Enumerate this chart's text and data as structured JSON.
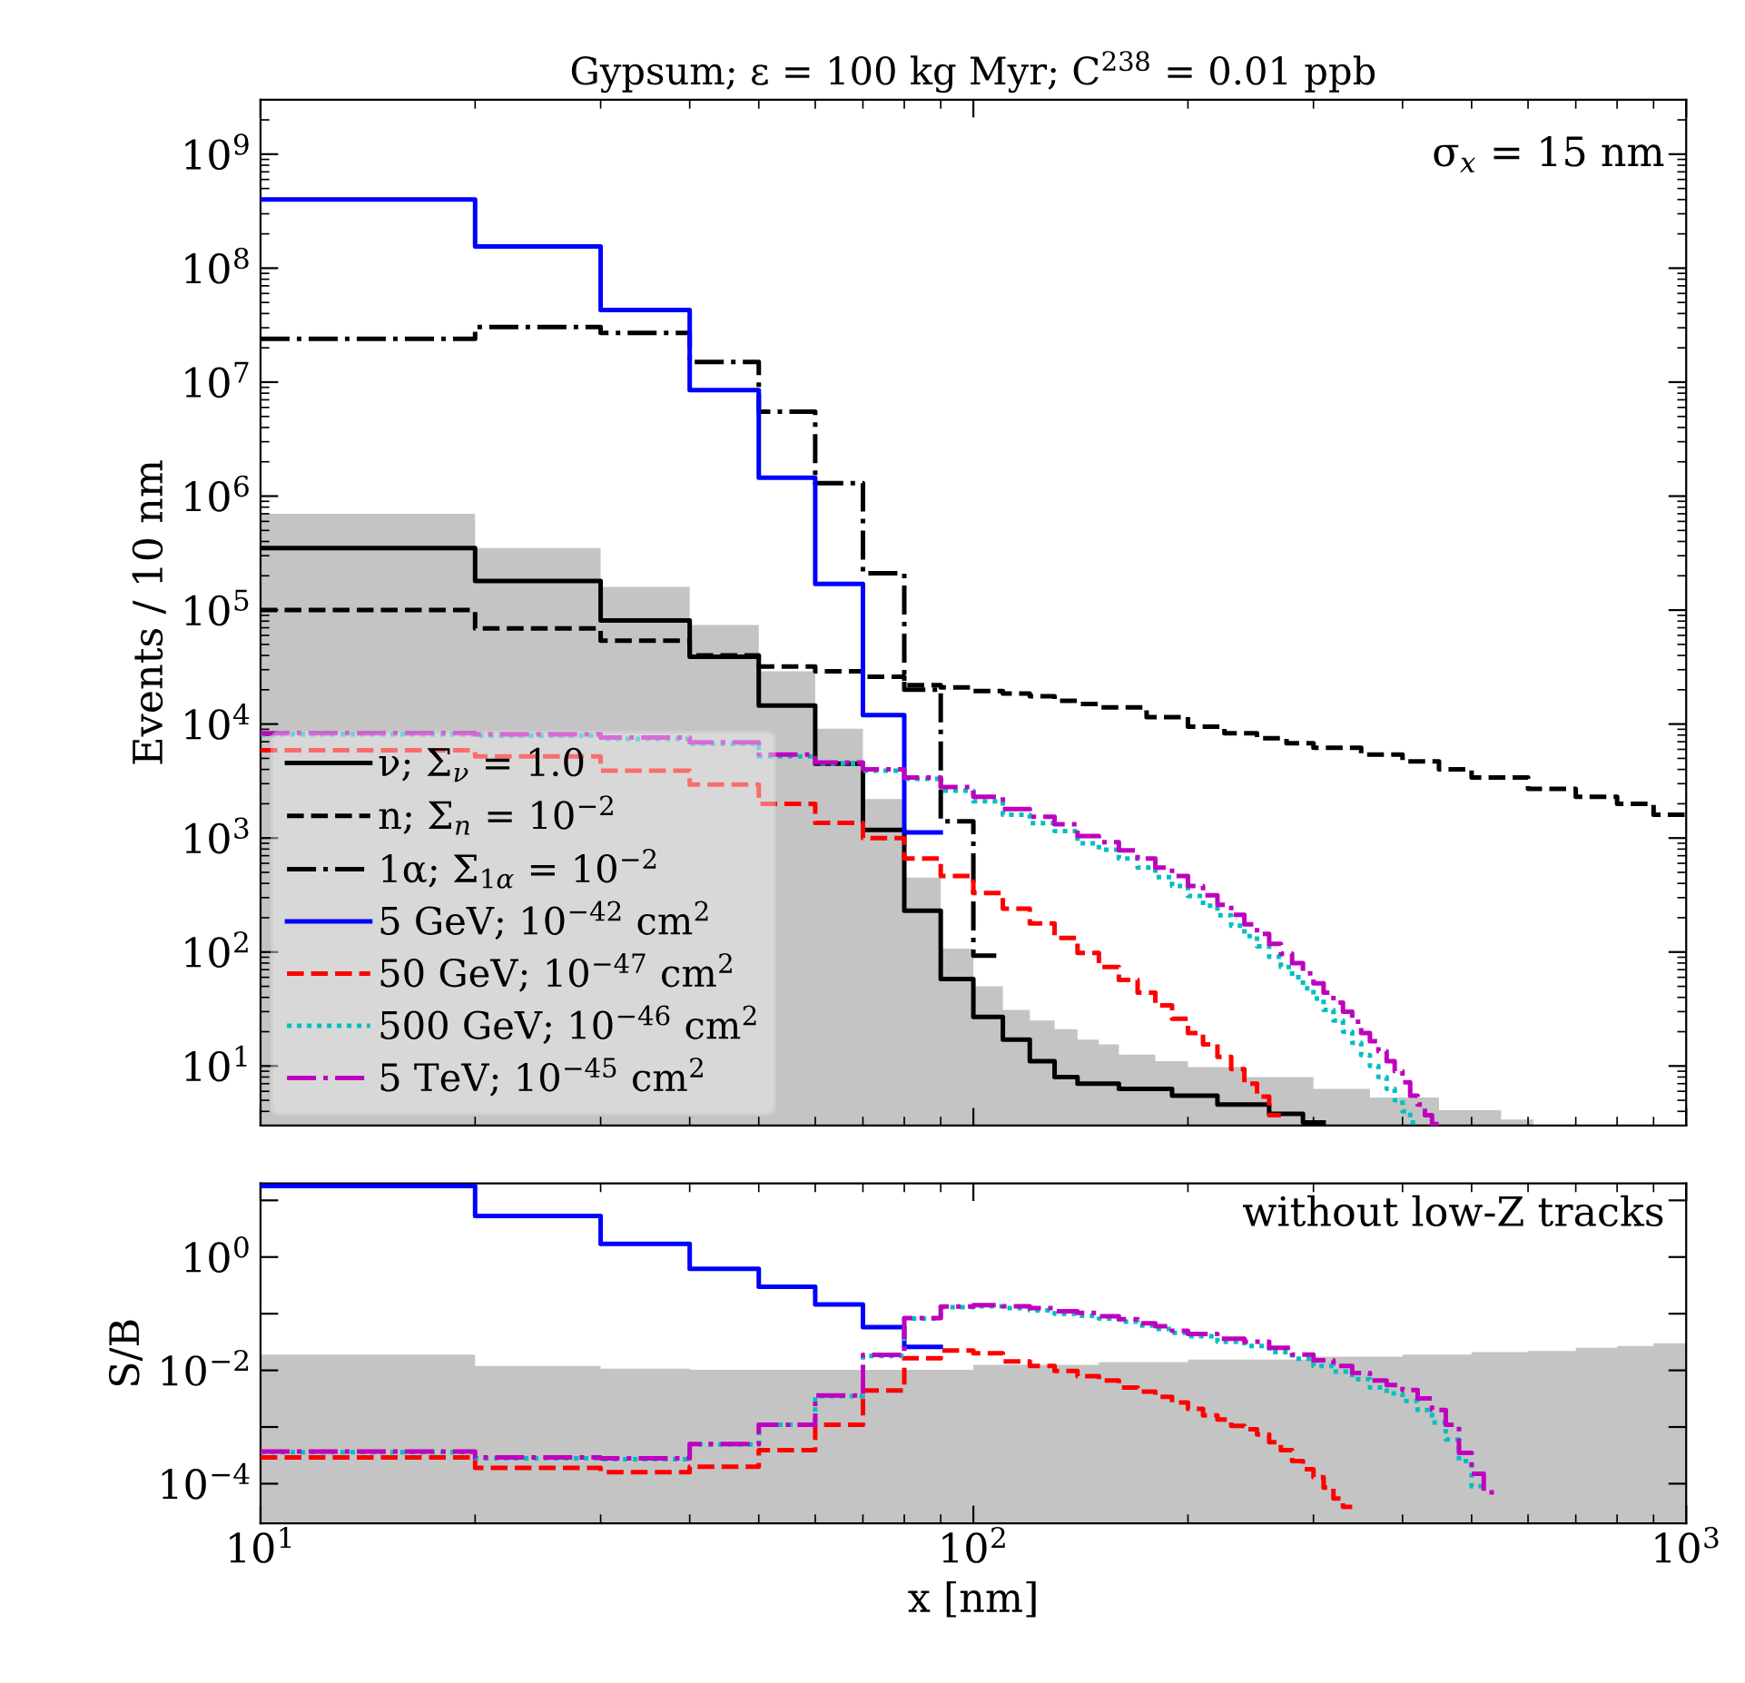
{
  "chart_data": [
    {
      "type": "step",
      "title": "Gypsum; ε = 100 kg Myr; C$^{238}$ = 0.01 ppb",
      "ylabel": "Events / 10 nm",
      "log": "xy",
      "xlim": [
        10,
        1000
      ],
      "ylim": [
        3,
        3000000000
      ],
      "xticks": [
        {
          "value": 10,
          "label": null
        },
        {
          "value": 100,
          "label": null
        },
        {
          "value": 1000,
          "label": null
        }
      ],
      "yticks": [
        {
          "value": 10,
          "label": "10$^{1}$"
        },
        {
          "value": 100,
          "label": "10$^{2}$"
        },
        {
          "value": 1000,
          "label": "10$^{3}$"
        },
        {
          "value": 10000,
          "label": "10$^{4}$"
        },
        {
          "value": 100000,
          "label": "10$^{5}$"
        },
        {
          "value": 1000000,
          "label": "10$^{6}$"
        },
        {
          "value": 10000000,
          "label": "10$^{7}$"
        },
        {
          "value": 100000000,
          "label": "10$^{8}$"
        },
        {
          "value": 1000000000,
          "label": "10$^{9}$"
        }
      ],
      "tick_labels": "y",
      "legend": "lower left",
      "annotations": [
        "σ$_{x}$ = 15 nm"
      ],
      "series": [
        {
          "type": "area",
          "color": "#c4c4c4",
          "x": [
            10,
            20,
            30,
            40,
            50,
            60,
            70,
            80,
            90,
            100,
            110,
            120,
            130,
            140,
            150,
            160,
            180,
            200,
            240,
            300,
            360,
            450,
            550,
            610
          ],
          "values": [
            700000,
            350000,
            160000,
            74000,
            29000,
            9100,
            2200,
            450,
            107,
            50,
            31,
            25,
            21,
            17,
            15.5,
            12.6,
            11,
            9.8,
            8,
            6.3,
            5.3,
            4.1,
            3.4,
            3.4
          ]
        },
        {
          "name": "ν; Σ$_{ν}$ = 1.0",
          "color": "#000000",
          "line_style": "solid",
          "x": [
            10,
            20,
            30,
            40,
            50,
            60,
            70,
            80,
            90,
            100,
            110,
            120,
            130,
            140,
            160,
            190,
            220,
            260,
            290,
            310
          ],
          "values": [
            350000,
            180000,
            81000,
            39000,
            14500,
            4500,
            1180,
            230,
            58,
            27,
            17,
            11,
            8,
            7,
            6.3,
            5.5,
            4.6,
            3.8,
            3.2,
            3.2
          ]
        },
        {
          "name": "n; Σ$_{n}$ = 10$^{−2}$",
          "color": "#000000",
          "line_style": "dashed",
          "x": [
            10,
            20,
            30,
            40,
            50,
            60,
            70,
            80,
            90,
            100,
            110,
            120,
            130,
            140,
            150,
            175,
            200,
            225,
            250,
            275,
            300,
            350,
            400,
            450,
            500,
            600,
            700,
            800,
            900,
            1000
          ],
          "values": [
            100000,
            69000,
            54000,
            40000,
            32000,
            29000,
            26000,
            22000,
            21000,
            19500,
            18500,
            17500,
            16000,
            15000,
            14000,
            11500,
            9500,
            8300,
            7500,
            6800,
            6200,
            5400,
            4700,
            4000,
            3400,
            2700,
            2300,
            2000,
            1600,
            1600
          ]
        },
        {
          "name": "1α; Σ$_{1α}$ = 10$^{−2}$",
          "color": "#000000",
          "line_style": "dashdot",
          "x": [
            10,
            20,
            30,
            40,
            50,
            60,
            70,
            80,
            90,
            100,
            110
          ],
          "values": [
            24000000,
            30500000,
            27000000,
            15000000,
            5500000,
            1300000,
            210000,
            20000,
            1400,
            93,
            93
          ]
        },
        {
          "name": "5 GeV; 10$^{−42}$ cm$^{2}$",
          "color": "#0000ff",
          "line_style": "solid",
          "x": [
            10,
            20,
            30,
            40,
            50,
            60,
            70,
            80,
            90
          ],
          "values": [
            400000000,
            155000000,
            43000000,
            8500000,
            1450000,
            170000,
            12000,
            1120,
            1120
          ]
        },
        {
          "name": "50 GeV; 10$^{−47}$ cm$^{2}$",
          "color": "#ff0000",
          "line_style": "dashed",
          "x": [
            10,
            20,
            30,
            40,
            50,
            60,
            70,
            80,
            90,
            100,
            110,
            120,
            130,
            140,
            150,
            160,
            170,
            180,
            190,
            200,
            210,
            220,
            230,
            240,
            250,
            260,
            270
          ],
          "values": [
            5900,
            5200,
            3900,
            2950,
            2000,
            1360,
            1000,
            660,
            465,
            330,
            240,
            178,
            133,
            98,
            74,
            57,
            44,
            34,
            26,
            19.5,
            15.5,
            12,
            9.4,
            7,
            5.4,
            3.7,
            3.7
          ]
        },
        {
          "name": "500 GeV; 10$^{−46}$ cm$^{2}$",
          "color": "#00bfbf",
          "line_style": "dotted",
          "x": [
            10,
            20,
            30,
            40,
            50,
            60,
            70,
            80,
            90,
            100,
            110,
            120,
            130,
            140,
            150,
            160,
            170,
            180,
            190,
            200,
            210,
            220,
            230,
            240,
            250,
            260,
            270,
            280,
            290,
            300,
            310,
            320,
            330,
            340,
            350,
            360,
            370,
            380,
            390,
            400,
            410,
            420
          ],
          "values": [
            8100,
            7900,
            7400,
            6700,
            5200,
            4500,
            3900,
            3300,
            2600,
            2100,
            1600,
            1350,
            1150,
            900,
            790,
            660,
            550,
            455,
            380,
            310,
            255,
            210,
            170,
            138,
            112,
            91,
            74,
            60,
            48,
            39,
            31,
            25,
            20,
            16,
            12.5,
            10,
            8,
            6.3,
            5,
            4,
            3.2,
            3.2
          ]
        },
        {
          "name": "5 TeV; 10$^{−45}$ cm$^{2}$",
          "color": "#bf00bf",
          "line_style": "dashdot",
          "x": [
            10,
            20,
            30,
            40,
            50,
            60,
            70,
            80,
            90,
            100,
            110,
            120,
            130,
            140,
            150,
            160,
            170,
            180,
            190,
            200,
            210,
            220,
            230,
            240,
            250,
            260,
            270,
            280,
            290,
            300,
            310,
            320,
            330,
            340,
            350,
            360,
            370,
            380,
            390,
            400,
            410,
            420,
            430,
            440,
            450
          ],
          "values": [
            8300,
            8100,
            7600,
            6900,
            5400,
            4600,
            4000,
            3400,
            2800,
            2300,
            1800,
            1540,
            1320,
            1040,
            920,
            780,
            660,
            550,
            465,
            380,
            315,
            260,
            212,
            175,
            144,
            118,
            97,
            80,
            65,
            53,
            44,
            36,
            30,
            24.5,
            19.5,
            16.5,
            13.5,
            11,
            9,
            7.2,
            5.5,
            4.6,
            3.7,
            3.1,
            3.1
          ]
        }
      ]
    },
    {
      "type": "step",
      "xlabel": "x [nm]",
      "ylabel": "S/B",
      "log": "xy",
      "xlim": [
        10,
        1000
      ],
      "ylim": [
        2e-05,
        20
      ],
      "xticks": [
        {
          "value": 10,
          "label": "10$^{1}$"
        },
        {
          "value": 100,
          "label": "10$^{2}$"
        },
        {
          "value": 1000,
          "label": "10$^{3}$"
        }
      ],
      "yticks": [
        {
          "value": 0.0001,
          "label": "10$^{−4}$"
        },
        {
          "value": 0.001,
          "label": null
        },
        {
          "value": 0.01,
          "label": "10$^{−2}$"
        },
        {
          "value": 0.1,
          "label": null
        },
        {
          "value": 1,
          "label": "10$^{0}$"
        },
        {
          "value": 10,
          "label": null
        }
      ],
      "annotations": [
        "without low-Z tracks"
      ],
      "series": [
        {
          "type": "area",
          "color": "#c4c4c4",
          "x": [
            10,
            20,
            30,
            40,
            100,
            150,
            200,
            300,
            400,
            500,
            600,
            700,
            800,
            900,
            1000
          ],
          "values": [
            0.019,
            0.012,
            0.0107,
            0.0102,
            0.0125,
            0.014,
            0.0155,
            0.0175,
            0.019,
            0.021,
            0.022,
            0.025,
            0.027,
            0.03,
            0.03
          ]
        },
        {
          "color": "#0000ff",
          "line_style": "solid",
          "x": [
            10,
            20,
            30,
            40,
            50,
            60,
            70,
            80,
            90
          ],
          "values": [
            18,
            5.3,
            1.7,
            0.62,
            0.3,
            0.145,
            0.058,
            0.026,
            0.026
          ]
        },
        {
          "color": "#ff0000",
          "line_style": "dashed",
          "x": [
            10,
            20,
            30,
            40,
            50,
            60,
            70,
            80,
            90,
            100,
            110,
            120,
            130,
            140,
            150,
            160,
            170,
            180,
            190,
            200,
            210,
            220,
            230,
            240,
            250,
            260,
            270,
            280,
            290,
            300,
            310,
            320,
            330,
            340
          ],
          "values": [
            0.00029,
            0.00019,
            0.00016,
            0.0002,
            0.00039,
            0.0011,
            0.0044,
            0.0163,
            0.0224,
            0.02,
            0.0144,
            0.012,
            0.0098,
            0.0079,
            0.0066,
            0.005,
            0.0042,
            0.0034,
            0.0027,
            0.0021,
            0.0016,
            0.00135,
            0.00105,
            0.00091,
            0.00074,
            0.00054,
            0.00039,
            0.00025,
            0.00018,
            0.00013,
            8.5e-05,
            5.5e-05,
            3.9e-05,
            3.9e-05
          ]
        },
        {
          "color": "#00bfbf",
          "line_style": "dotted",
          "x": [
            10,
            20,
            30,
            40,
            50,
            60,
            70,
            80,
            90,
            100,
            110,
            120,
            130,
            140,
            150,
            160,
            170,
            180,
            190,
            200,
            220,
            240,
            260,
            280,
            300,
            320,
            340,
            360,
            380,
            400,
            420,
            440,
            460,
            480,
            500,
            520
          ],
          "values": [
            0.00036,
            0.00028,
            0.00027,
            0.00049,
            0.0011,
            0.0035,
            0.018,
            0.082,
            0.13,
            0.135,
            0.125,
            0.115,
            0.1,
            0.092,
            0.082,
            0.072,
            0.062,
            0.054,
            0.046,
            0.04,
            0.032,
            0.027,
            0.021,
            0.016,
            0.012,
            0.0095,
            0.007,
            0.005,
            0.0039,
            0.0029,
            0.002,
            0.0012,
            0.0006,
            0.00025,
            9e-05,
            9e-05
          ]
        },
        {
          "color": "#bf00bf",
          "line_style": "dashdot",
          "x": [
            10,
            20,
            30,
            40,
            50,
            60,
            70,
            80,
            90,
            100,
            110,
            120,
            130,
            140,
            150,
            160,
            170,
            180,
            190,
            200,
            220,
            240,
            260,
            280,
            300,
            320,
            340,
            360,
            380,
            400,
            420,
            440,
            460,
            480,
            500,
            520,
            540
          ],
          "values": [
            0.00037,
            0.00029,
            0.00028,
            0.0005,
            0.0011,
            0.0036,
            0.0187,
            0.084,
            0.134,
            0.141,
            0.135,
            0.125,
            0.11,
            0.103,
            0.09,
            0.08,
            0.068,
            0.06,
            0.05,
            0.044,
            0.036,
            0.032,
            0.025,
            0.019,
            0.015,
            0.012,
            0.009,
            0.0066,
            0.0055,
            0.0045,
            0.0032,
            0.002,
            0.0011,
            0.00035,
            0.00015,
            7e-05,
            7e-05
          ]
        }
      ]
    }
  ]
}
